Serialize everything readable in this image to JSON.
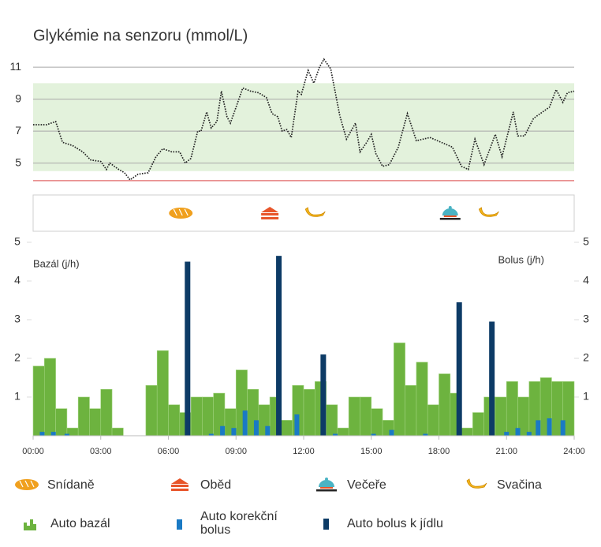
{
  "chart_data": [
    {
      "type": "line",
      "title": "Glykémie na senzoru (mmol/L)",
      "x": [
        0,
        0.6,
        1.0,
        1.3,
        1.75,
        2.2,
        2.55,
        3.0,
        3.25,
        3.4,
        3.8,
        4.05,
        4.3,
        4.65,
        5.1,
        5.45,
        5.75,
        6.15,
        6.5,
        6.75,
        7.0,
        7.3,
        7.45,
        7.7,
        7.9,
        8.15,
        8.35,
        8.6,
        8.75,
        9.0,
        9.3,
        9.65,
        10.0,
        10.35,
        10.6,
        10.85,
        11.05,
        11.25,
        11.45,
        11.75,
        11.9,
        12.2,
        12.45,
        12.7,
        12.9,
        13.2,
        13.6,
        13.9,
        14.3,
        14.5,
        14.8,
        15.0,
        15.2,
        15.5,
        15.8,
        16.2,
        16.6,
        17.0,
        17.6,
        18.1,
        18.6,
        19.0,
        19.3,
        19.6,
        20.0,
        20.5,
        20.8,
        21.3,
        21.5,
        21.8,
        22.2,
        22.6,
        22.9,
        23.2,
        23.5,
        23.7,
        24.0
      ],
      "values": [
        7.4,
        7.4,
        7.6,
        6.3,
        6.1,
        5.7,
        5.2,
        5.1,
        4.6,
        5.0,
        4.6,
        4.4,
        3.95,
        4.3,
        4.4,
        5.4,
        5.9,
        5.7,
        5.7,
        5.0,
        5.3,
        7.0,
        7.0,
        8.2,
        7.2,
        7.6,
        9.5,
        7.9,
        7.5,
        8.5,
        9.7,
        9.5,
        9.4,
        9.1,
        8.1,
        7.9,
        7.0,
        7.1,
        6.6,
        9.5,
        9.3,
        10.8,
        10.0,
        11.0,
        11.5,
        10.9,
        8.0,
        6.5,
        7.5,
        5.7,
        6.3,
        6.8,
        5.6,
        4.8,
        4.9,
        6.0,
        8.1,
        6.4,
        6.6,
        6.3,
        6.0,
        4.8,
        4.6,
        6.5,
        4.9,
        6.8,
        5.4,
        8.2,
        6.7,
        6.7,
        7.8,
        8.2,
        8.5,
        9.6,
        8.8,
        9.4,
        9.5
      ],
      "color": "#222222",
      "xlim": [
        0,
        24
      ],
      "ylim": [
        3.5,
        11.5
      ],
      "yticks": [
        5,
        7,
        9,
        11
      ],
      "grid": true,
      "target_range": [
        4.5,
        10
      ],
      "target_color": "#e3f2dc",
      "low_threshold": 3.9,
      "low_color": "#e26a6a",
      "meals": [
        {
          "name": "Snídaně",
          "color": "#f0a01e",
          "times": [
            6.55
          ]
        },
        {
          "name": "Oběd",
          "color": "#e8552a",
          "times": [
            10.5
          ]
        },
        {
          "name": "Večeře",
          "color": "#4ab3c4",
          "times": [
            18.5
          ]
        },
        {
          "name": "Svačina",
          "color": "#f2b51c",
          "times": [
            12.5,
            20.2
          ]
        }
      ]
    },
    {
      "type": "bar",
      "ylabel": "Bazál (j/h)",
      "y2label": "Bolus (j/h)",
      "xlim": [
        0,
        24
      ],
      "xticks": [
        {
          "value": 0,
          "label": "00:00"
        },
        {
          "value": 3,
          "label": "03:00"
        },
        {
          "value": 6,
          "label": "06:00"
        },
        {
          "value": 9,
          "label": "09:00"
        },
        {
          "value": 12,
          "label": "12:00"
        },
        {
          "value": 15,
          "label": "15:00"
        },
        {
          "value": 18,
          "label": "18:00"
        },
        {
          "value": 21,
          "label": "21:00"
        },
        {
          "value": 24,
          "label": "24:00"
        }
      ],
      "ylim": [
        0,
        5
      ],
      "yticks": [
        1,
        2,
        3,
        4,
        5
      ],
      "y2lim": [
        0,
        5
      ],
      "y2ticks": [
        1,
        2,
        3,
        4,
        5
      ],
      "series": [
        {
          "name": "Auto bazál",
          "color": "#6db33f",
          "bins": [
            0,
            0.5,
            1,
            1.5,
            2,
            2.5,
            3,
            3.5,
            4,
            4.5,
            5,
            5.5,
            6,
            6.5,
            7,
            7.5,
            8,
            8.5,
            9,
            9.5,
            10,
            10.5,
            11,
            11.5,
            12,
            12.5,
            13,
            13.5,
            14,
            14.5,
            15,
            15.5,
            16,
            16.5,
            17,
            17.5,
            18,
            18.5,
            19,
            19.5,
            20,
            20.5,
            21,
            21.5,
            22,
            22.5,
            23,
            23.5,
            24
          ],
          "values": [
            1.8,
            2.0,
            0.7,
            0.2,
            1.0,
            0.7,
            1.2,
            0.2,
            0,
            0,
            1.3,
            2.2,
            0.8,
            0.6,
            1.0,
            1.0,
            1.1,
            0.7,
            1.7,
            1.2,
            0.8,
            1.0,
            0.4,
            1.3,
            1.2,
            1.4,
            0.8,
            0.2,
            1.0,
            1.0,
            0.7,
            0.4,
            2.4,
            1.3,
            1.9,
            0.8,
            1.6,
            1.1,
            0.2,
            0.6,
            1.0,
            1.0,
            1.4,
            1.0,
            1.4,
            1.5,
            1.4,
            1.4
          ]
        },
        {
          "name": "Auto korekční bolus",
          "color": "#1a7ac4",
          "axis": "y2",
          "x": [
            0.4,
            0.9,
            1.5,
            7.9,
            8.4,
            8.9,
            9.4,
            9.9,
            10.4,
            11.7,
            13.4,
            15.1,
            15.9,
            17.4,
            21.0,
            21.5,
            22.0,
            22.4,
            22.9,
            23.5
          ],
          "values": [
            0.1,
            0.1,
            0.05,
            0.05,
            0.25,
            0.2,
            0.65,
            0.4,
            0.25,
            0.55,
            0.05,
            0.05,
            0.15,
            0.05,
            0.1,
            0.2,
            0.1,
            0.4,
            0.45,
            0.4
          ]
        },
        {
          "name": "Auto bolus k jídlu",
          "color": "#0d3b66",
          "axis": "y2",
          "x": [
            6.85,
            10.9,
            12.87,
            18.9,
            20.35
          ],
          "values": [
            4.5,
            4.65,
            2.1,
            3.45,
            2.95
          ]
        }
      ]
    }
  ]
}
